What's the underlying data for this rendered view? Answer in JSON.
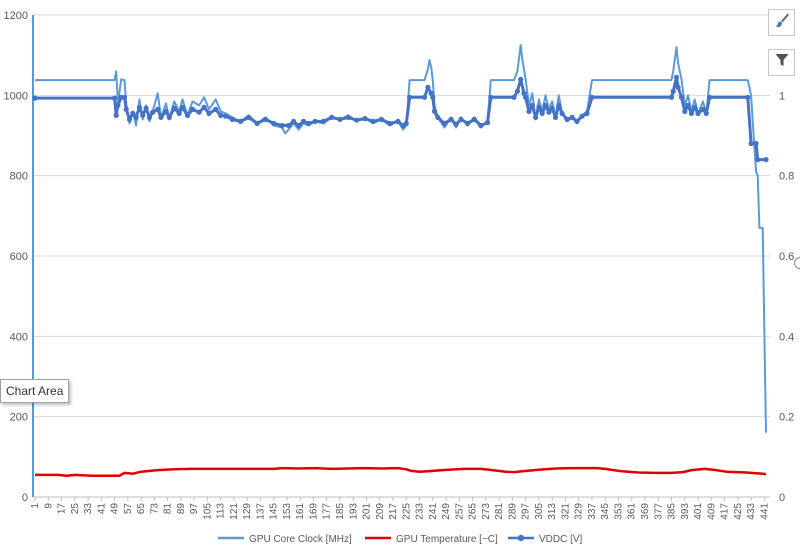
{
  "chart_data": {
    "type": "line",
    "title": "",
    "x_start": 1,
    "x_end": 442,
    "x_tick_step": 8,
    "x_tick_labels": [
      "1",
      "9",
      "17",
      "25",
      "33",
      "41",
      "49",
      "57",
      "65",
      "73",
      "81",
      "89",
      "97",
      "105",
      "113",
      "121",
      "129",
      "137",
      "145",
      "153",
      "161",
      "169",
      "177",
      "185",
      "193",
      "201",
      "209",
      "217",
      "225",
      "233",
      "241",
      "249",
      "257",
      "265",
      "273",
      "281",
      "289",
      "297",
      "305",
      "313",
      "321",
      "329",
      "337",
      "345",
      "353",
      "361",
      "369",
      "377",
      "385",
      "393",
      "401",
      "409",
      "417",
      "425",
      "433",
      "441"
    ],
    "y_left": {
      "min": 0,
      "max": 1200,
      "step": 200,
      "tick_labels": [
        "0",
        "200",
        "400",
        "600",
        "800",
        "1000",
        "1200"
      ]
    },
    "y_right": {
      "min": 0,
      "max": 1.2,
      "step": 0.2,
      "tick_labels": [
        "0",
        "0.2",
        "0.4",
        "0.6",
        "0.8",
        "1"
      ]
    },
    "grid": true,
    "legend_position": "bottom",
    "series": [
      {
        "name": "GPU Core Clock [MHz]",
        "axis": "left",
        "color": "#5b9bd5",
        "points": [
          [
            1,
            1038
          ],
          [
            49,
            1038
          ],
          [
            50,
            1060
          ],
          [
            51,
            980
          ],
          [
            53,
            1040
          ],
          [
            55,
            1038
          ],
          [
            56,
            980
          ],
          [
            58,
            930
          ],
          [
            60,
            960
          ],
          [
            62,
            925
          ],
          [
            64,
            990
          ],
          [
            66,
            940
          ],
          [
            68,
            975
          ],
          [
            70,
            935
          ],
          [
            72,
            960
          ],
          [
            75,
            1005
          ],
          [
            77,
            945
          ],
          [
            80,
            980
          ],
          [
            82,
            940
          ],
          [
            85,
            985
          ],
          [
            88,
            960
          ],
          [
            90,
            990
          ],
          [
            93,
            950
          ],
          [
            96,
            985
          ],
          [
            100,
            975
          ],
          [
            103,
            995
          ],
          [
            106,
            965
          ],
          [
            110,
            990
          ],
          [
            113,
            960
          ],
          [
            116,
            955
          ],
          [
            120,
            945
          ],
          [
            125,
            935
          ],
          [
            130,
            950
          ],
          [
            135,
            930
          ],
          [
            140,
            945
          ],
          [
            145,
            925
          ],
          [
            150,
            920
          ],
          [
            152,
            905
          ],
          [
            154,
            915
          ],
          [
            157,
            930
          ],
          [
            160,
            915
          ],
          [
            163,
            930
          ],
          [
            166,
            925
          ],
          [
            170,
            935
          ],
          [
            175,
            930
          ],
          [
            180,
            945
          ],
          [
            185,
            940
          ],
          [
            190,
            950
          ],
          [
            195,
            935
          ],
          [
            200,
            945
          ],
          [
            205,
            930
          ],
          [
            210,
            940
          ],
          [
            215,
            925
          ],
          [
            220,
            935
          ],
          [
            223,
            915
          ],
          [
            225,
            925
          ],
          [
            227,
            1038
          ],
          [
            236,
            1038
          ],
          [
            238,
            1065
          ],
          [
            239,
            1088
          ],
          [
            240,
            1070
          ],
          [
            241,
            1038
          ],
          [
            242,
            975
          ],
          [
            244,
            945
          ],
          [
            248,
            920
          ],
          [
            252,
            945
          ],
          [
            255,
            920
          ],
          [
            258,
            945
          ],
          [
            262,
            925
          ],
          [
            266,
            945
          ],
          [
            270,
            920
          ],
          [
            274,
            935
          ],
          [
            276,
            1038
          ],
          [
            290,
            1038
          ],
          [
            292,
            1060
          ],
          [
            294,
            1125
          ],
          [
            295,
            1090
          ],
          [
            297,
            1040
          ],
          [
            299,
            975
          ],
          [
            301,
            1005
          ],
          [
            303,
            940
          ],
          [
            305,
            990
          ],
          [
            307,
            960
          ],
          [
            309,
            1000
          ],
          [
            311,
            965
          ],
          [
            313,
            985
          ],
          [
            315,
            945
          ],
          [
            317,
            1000
          ],
          [
            319,
            955
          ],
          [
            322,
            935
          ],
          [
            325,
            945
          ],
          [
            328,
            930
          ],
          [
            331,
            950
          ],
          [
            334,
            960
          ],
          [
            337,
            1038
          ],
          [
            385,
            1038
          ],
          [
            386,
            1060
          ],
          [
            388,
            1120
          ],
          [
            389,
            1080
          ],
          [
            391,
            1040
          ],
          [
            393,
            975
          ],
          [
            395,
            1000
          ],
          [
            397,
            960
          ],
          [
            399,
            990
          ],
          [
            401,
            955
          ],
          [
            404,
            985
          ],
          [
            406,
            955
          ],
          [
            408,
            1038
          ],
          [
            431,
            1038
          ],
          [
            433,
            1000
          ],
          [
            435,
            870
          ],
          [
            436,
            810
          ],
          [
            437,
            800
          ],
          [
            438,
            670
          ],
          [
            440,
            670
          ],
          [
            441,
            420
          ],
          [
            442,
            160
          ]
        ]
      },
      {
        "name": "GPU Temperature [~C]",
        "axis": "left",
        "color": "#e00000",
        "points": [
          [
            1,
            55
          ],
          [
            15,
            55
          ],
          [
            20,
            53
          ],
          [
            25,
            55
          ],
          [
            35,
            53
          ],
          [
            45,
            53
          ],
          [
            52,
            53
          ],
          [
            55,
            60
          ],
          [
            60,
            58
          ],
          [
            65,
            63
          ],
          [
            75,
            67
          ],
          [
            85,
            69
          ],
          [
            95,
            70
          ],
          [
            105,
            70
          ],
          [
            120,
            70
          ],
          [
            135,
            70
          ],
          [
            145,
            70
          ],
          [
            150,
            72
          ],
          [
            160,
            71
          ],
          [
            170,
            72
          ],
          [
            180,
            70
          ],
          [
            190,
            71
          ],
          [
            200,
            72
          ],
          [
            210,
            71
          ],
          [
            220,
            72
          ],
          [
            225,
            69
          ],
          [
            228,
            65
          ],
          [
            233,
            63
          ],
          [
            241,
            65
          ],
          [
            250,
            68
          ],
          [
            260,
            70
          ],
          [
            270,
            70
          ],
          [
            275,
            68
          ],
          [
            285,
            63
          ],
          [
            290,
            62
          ],
          [
            295,
            64
          ],
          [
            305,
            68
          ],
          [
            315,
            71
          ],
          [
            325,
            72
          ],
          [
            335,
            72
          ],
          [
            340,
            72
          ],
          [
            345,
            70
          ],
          [
            355,
            64
          ],
          [
            365,
            61
          ],
          [
            375,
            60
          ],
          [
            385,
            60
          ],
          [
            392,
            62
          ],
          [
            397,
            67
          ],
          [
            405,
            70
          ],
          [
            410,
            68
          ],
          [
            418,
            63
          ],
          [
            430,
            61
          ],
          [
            440,
            58
          ],
          [
            442,
            57
          ]
        ]
      },
      {
        "name": "VDDC [V]",
        "axis": "right",
        "color": "#4472c4",
        "marker": "circle",
        "points": [
          [
            1,
            0.993
          ],
          [
            49,
            0.993
          ],
          [
            50,
            0.95
          ],
          [
            51,
            0.975
          ],
          [
            53,
            0.995
          ],
          [
            55,
            0.995
          ],
          [
            56,
            0.965
          ],
          [
            58,
            0.94
          ],
          [
            60,
            0.955
          ],
          [
            62,
            0.945
          ],
          [
            64,
            0.97
          ],
          [
            66,
            0.95
          ],
          [
            68,
            0.968
          ],
          [
            70,
            0.945
          ],
          [
            72,
            0.958
          ],
          [
            75,
            0.965
          ],
          [
            77,
            0.945
          ],
          [
            80,
            0.96
          ],
          [
            82,
            0.945
          ],
          [
            85,
            0.968
          ],
          [
            88,
            0.955
          ],
          [
            90,
            0.97
          ],
          [
            93,
            0.95
          ],
          [
            96,
            0.965
          ],
          [
            100,
            0.958
          ],
          [
            103,
            0.97
          ],
          [
            106,
            0.955
          ],
          [
            110,
            0.965
          ],
          [
            113,
            0.95
          ],
          [
            116,
            0.948
          ],
          [
            120,
            0.94
          ],
          [
            125,
            0.935
          ],
          [
            130,
            0.945
          ],
          [
            135,
            0.93
          ],
          [
            140,
            0.94
          ],
          [
            145,
            0.93
          ],
          [
            150,
            0.925
          ],
          [
            154,
            0.925
          ],
          [
            157,
            0.935
          ],
          [
            160,
            0.925
          ],
          [
            163,
            0.935
          ],
          [
            166,
            0.93
          ],
          [
            170,
            0.935
          ],
          [
            175,
            0.935
          ],
          [
            180,
            0.945
          ],
          [
            185,
            0.94
          ],
          [
            190,
            0.945
          ],
          [
            195,
            0.938
          ],
          [
            200,
            0.942
          ],
          [
            205,
            0.935
          ],
          [
            210,
            0.94
          ],
          [
            215,
            0.93
          ],
          [
            220,
            0.935
          ],
          [
            223,
            0.925
          ],
          [
            225,
            0.93
          ],
          [
            227,
            0.995
          ],
          [
            236,
            0.995
          ],
          [
            238,
            1.02
          ],
          [
            240,
            1.005
          ],
          [
            241,
            0.995
          ],
          [
            242,
            0.96
          ],
          [
            244,
            0.945
          ],
          [
            248,
            0.93
          ],
          [
            252,
            0.94
          ],
          [
            255,
            0.928
          ],
          [
            258,
            0.94
          ],
          [
            262,
            0.93
          ],
          [
            266,
            0.94
          ],
          [
            270,
            0.925
          ],
          [
            274,
            0.932
          ],
          [
            276,
            0.995
          ],
          [
            290,
            0.995
          ],
          [
            292,
            1.01
          ],
          [
            294,
            1.04
          ],
          [
            296,
            1.005
          ],
          [
            297,
            0.995
          ],
          [
            299,
            0.96
          ],
          [
            301,
            0.975
          ],
          [
            303,
            0.945
          ],
          [
            305,
            0.97
          ],
          [
            307,
            0.955
          ],
          [
            309,
            0.975
          ],
          [
            311,
            0.958
          ],
          [
            313,
            0.968
          ],
          [
            315,
            0.945
          ],
          [
            317,
            0.975
          ],
          [
            319,
            0.955
          ],
          [
            322,
            0.94
          ],
          [
            325,
            0.945
          ],
          [
            328,
            0.935
          ],
          [
            331,
            0.948
          ],
          [
            334,
            0.955
          ],
          [
            337,
            0.995
          ],
          [
            385,
            0.995
          ],
          [
            386,
            1.01
          ],
          [
            388,
            1.045
          ],
          [
            389,
            1.02
          ],
          [
            391,
            0.995
          ],
          [
            393,
            0.96
          ],
          [
            395,
            0.975
          ],
          [
            397,
            0.955
          ],
          [
            399,
            0.97
          ],
          [
            401,
            0.955
          ],
          [
            404,
            0.965
          ],
          [
            406,
            0.955
          ],
          [
            408,
            0.995
          ],
          [
            431,
            0.995
          ],
          [
            433,
            0.88
          ],
          [
            436,
            0.88
          ],
          [
            437,
            0.84
          ],
          [
            442,
            0.84
          ]
        ]
      }
    ]
  },
  "chart_area_tooltip": "Chart Area",
  "side_buttons": {
    "styles_icon": "paintbrush-icon",
    "filter_icon": "funnel-icon"
  }
}
